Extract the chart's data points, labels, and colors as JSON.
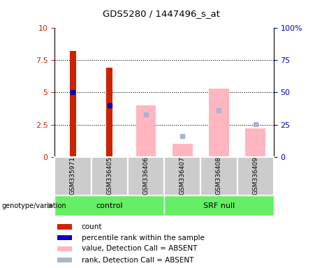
{
  "title": "GDS5280 / 1447496_s_at",
  "samples": [
    "GSM335971",
    "GSM336405",
    "GSM336406",
    "GSM336407",
    "GSM336408",
    "GSM336409"
  ],
  "red_bars": [
    8.2,
    6.9,
    null,
    null,
    null,
    null
  ],
  "blue_dots": [
    5.0,
    4.0,
    null,
    null,
    null,
    null
  ],
  "pink_bars": [
    null,
    null,
    4.0,
    1.0,
    5.3,
    2.2
  ],
  "lightblue_dots": [
    null,
    null,
    3.3,
    1.6,
    3.6,
    2.55
  ],
  "ylim_left": [
    0,
    10
  ],
  "ylim_right": [
    0,
    100
  ],
  "yticks_left": [
    0,
    2.5,
    5,
    7.5,
    10
  ],
  "yticks_right": [
    0,
    25,
    50,
    75,
    100
  ],
  "ytick_labels_left": [
    "0",
    "2.5",
    "5",
    "7.5",
    "10"
  ],
  "ytick_labels_right": [
    "0",
    "25",
    "50",
    "75",
    "100%"
  ],
  "red_color": "#cc2200",
  "blue_color": "#0000cc",
  "pink_color": "#ffb6c1",
  "lightblue_color": "#aab4cc",
  "plot_bg": "#ffffff",
  "ticklabel_bg": "#cccccc",
  "group_green": "#66ee66",
  "legend_items": [
    {
      "label": "count",
      "color": "#cc2200"
    },
    {
      "label": "percentile rank within the sample",
      "color": "#0000cc"
    },
    {
      "label": "value, Detection Call = ABSENT",
      "color": "#ffb6c1"
    },
    {
      "label": "rank, Detection Call = ABSENT",
      "color": "#aab4cc"
    }
  ],
  "control_samples": [
    0,
    1,
    2
  ],
  "srfnull_samples": [
    3,
    4,
    5
  ]
}
